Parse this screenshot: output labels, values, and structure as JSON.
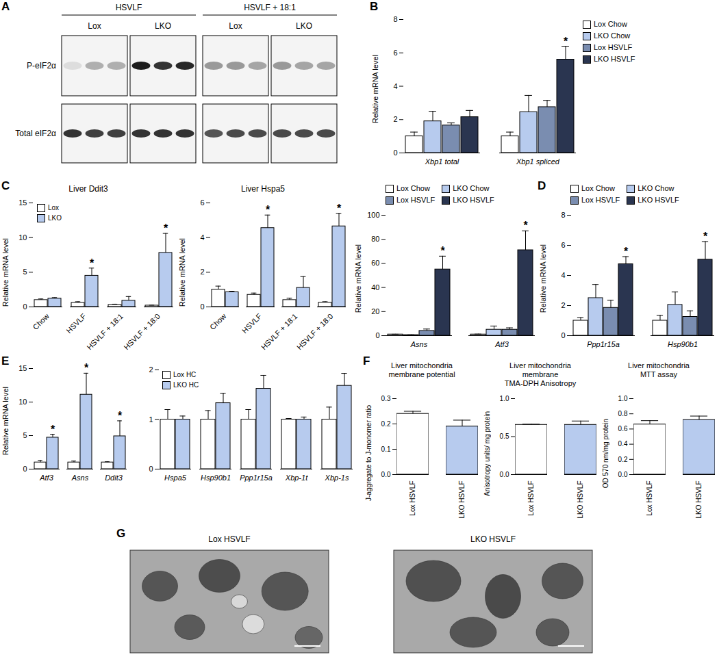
{
  "chart_data": [
    {
      "panel": "A",
      "type": "blot",
      "groups": [
        {
          "label": "HSVLF",
          "lanes": [
            {
              "label": "Lox",
              "count": 3
            },
            {
              "label": "LKO",
              "count": 3
            }
          ]
        },
        {
          "label": "HSVLF + 18:1",
          "lanes": [
            {
              "label": "Lox",
              "count": 3
            },
            {
              "label": "LKO",
              "count": 3
            }
          ]
        }
      ],
      "rows": [
        {
          "label": "P-eIF2α",
          "intensity": [
            0.1,
            0.3,
            0.3,
            0.95,
            0.85,
            0.9,
            0.4,
            0.4,
            0.35,
            0.4,
            0.35,
            0.35
          ]
        },
        {
          "label": "Total eIF2α",
          "intensity": [
            0.85,
            0.8,
            0.8,
            0.85,
            0.85,
            0.85,
            0.7,
            0.75,
            0.75,
            0.75,
            0.75,
            0.75
          ]
        }
      ]
    },
    {
      "panel": "B",
      "type": "bar",
      "ylabel": "Relative mRNA level",
      "categories": [
        "Xbp1 total",
        "Xbp1 spliced"
      ],
      "series": [
        {
          "name": "Lox Chow",
          "color": "#ffffff",
          "values": [
            1.0,
            1.0
          ],
          "errors": [
            0.25,
            0.25
          ]
        },
        {
          "name": "LKO Chow",
          "color": "#b7cbee",
          "values": [
            1.9,
            2.45
          ],
          "errors": [
            0.6,
            1.0
          ]
        },
        {
          "name": "Lox HSVLF",
          "color": "#7a8db0",
          "values": [
            1.65,
            2.75
          ],
          "errors": [
            0.15,
            0.4
          ]
        },
        {
          "name": "LKO HSVLF",
          "color": "#2a3550",
          "values": [
            2.15,
            5.6
          ],
          "errors": [
            0.4,
            0.8
          ]
        }
      ],
      "ylim": [
        0,
        8
      ],
      "yticks": [
        0,
        2,
        4,
        6,
        8
      ],
      "legend": "right",
      "annotations": [
        {
          "category": "Xbp1 spliced",
          "series": "LKO HSVLF",
          "text": "*"
        }
      ]
    },
    {
      "panel": "C",
      "type": "bar",
      "title": "Liver Ddit3",
      "ylabel": "Relative mRNA level",
      "categories": [
        "Chow",
        "HSVLF",
        "HSVLF + 18:1",
        "HSVLF + 18:0"
      ],
      "series": [
        {
          "name": "Lox",
          "color": "#ffffff",
          "values": [
            1.0,
            0.6,
            0.3,
            0.2
          ],
          "errors": [
            0.15,
            0.15,
            0.1,
            0.05
          ]
        },
        {
          "name": "LKO",
          "color": "#b7cbee",
          "values": [
            1.2,
            4.5,
            0.9,
            7.8
          ],
          "errors": [
            0.15,
            1.1,
            0.6,
            2.8
          ]
        }
      ],
      "ylim": [
        0,
        15
      ],
      "yticks": [
        0,
        5,
        10,
        15
      ],
      "legend": "top-left",
      "annotations": [
        {
          "category": "HSVLF",
          "series": "LKO",
          "text": "*"
        },
        {
          "category": "HSVLF + 18:0",
          "series": "LKO",
          "text": "*"
        }
      ]
    },
    {
      "type": "bar",
      "title": "Liver Hspa5",
      "ylabel": "Relative mRNA level",
      "categories": [
        "Chow",
        "HSVLF",
        "HSVLF + 18:1",
        "HSVLF + 18:0"
      ],
      "series": [
        {
          "name": "Lox",
          "color": "#ffffff",
          "values": [
            1.0,
            0.7,
            0.4,
            0.25
          ],
          "errors": [
            0.2,
            0.1,
            0.1,
            0.05
          ]
        },
        {
          "name": "LKO",
          "color": "#b7cbee",
          "values": [
            0.85,
            4.55,
            1.1,
            4.65
          ],
          "errors": [
            0.05,
            0.75,
            0.65,
            0.75
          ]
        }
      ],
      "ylim": [
        0,
        6
      ],
      "yticks": [
        0,
        2,
        4,
        6
      ],
      "annotations": [
        {
          "category": "HSVLF",
          "series": "LKO",
          "text": "*"
        },
        {
          "category": "HSVLF + 18:0",
          "series": "LKO",
          "text": "*"
        }
      ]
    },
    {
      "type": "bar",
      "ylabel": "Relative mRNA level",
      "categories": [
        "Asns",
        "Atf3"
      ],
      "series": [
        {
          "name": "Lox Chow",
          "color": "#ffffff",
          "values": [
            1.0,
            1.0
          ],
          "errors": [
            0.2,
            0.3
          ]
        },
        {
          "name": "LKO Chow",
          "color": "#b7cbee",
          "values": [
            0.5,
            5.0
          ],
          "errors": [
            0.2,
            3.0
          ]
        },
        {
          "name": "Lox HSVLF",
          "color": "#7a8db0",
          "values": [
            4.0,
            5.0
          ],
          "errors": [
            1.5,
            1.5
          ]
        },
        {
          "name": "LKO HSVLF",
          "color": "#2a3550",
          "values": [
            55,
            71
          ],
          "errors": [
            11,
            16
          ]
        }
      ],
      "ylim": [
        0,
        100
      ],
      "yticks": [
        0,
        20,
        40,
        60,
        80,
        100
      ],
      "legend": "top",
      "annotations": [
        {
          "category": "Asns",
          "series": "LKO HSVLF",
          "text": "*"
        },
        {
          "category": "Atf3",
          "series": "LKO HSVLF",
          "text": "*"
        }
      ]
    },
    {
      "panel": "D",
      "type": "bar",
      "ylabel": "Relative mRNA level",
      "categories": [
        "Ppp1r15a",
        "Hsp90b1"
      ],
      "series": [
        {
          "name": "Lox Chow",
          "color": "#ffffff",
          "values": [
            1.0,
            1.0
          ],
          "errors": [
            0.2,
            0.35
          ]
        },
        {
          "name": "LKO Chow",
          "color": "#b7cbee",
          "values": [
            2.5,
            2.05
          ],
          "errors": [
            0.9,
            0.85
          ]
        },
        {
          "name": "Lox HSVLF",
          "color": "#7a8db0",
          "values": [
            1.85,
            1.25
          ],
          "errors": [
            0.5,
            0.4
          ]
        },
        {
          "name": "LKO HSVLF",
          "color": "#2a3550",
          "values": [
            4.75,
            5.05
          ],
          "errors": [
            0.5,
            1.2
          ]
        }
      ],
      "ylim": [
        0,
        8
      ],
      "yticks": [
        0,
        2,
        4,
        6,
        8
      ],
      "legend": "top",
      "annotations": [
        {
          "category": "Ppp1r15a",
          "series": "LKO HSVLF",
          "text": "*"
        },
        {
          "category": "Hsp90b1",
          "series": "LKO HSVLF",
          "text": "*"
        }
      ]
    },
    {
      "panel": "E",
      "type": "bar",
      "ylabel": "Relative mRNA level",
      "categories": [
        "Atf3",
        "Asns",
        "Ddit3"
      ],
      "series": [
        {
          "name": "Lox HC",
          "color": "#ffffff",
          "values": [
            1.0,
            1.0,
            1.0
          ],
          "errors": [
            0.3,
            0.2,
            0.1
          ]
        },
        {
          "name": "LKO HC",
          "color": "#b7cbee",
          "values": [
            4.7,
            11.1,
            4.9
          ],
          "errors": [
            0.5,
            3.2,
            2.3
          ]
        }
      ],
      "ylim": [
        0,
        15
      ],
      "yticks": [
        0,
        5,
        10,
        15
      ],
      "annotations": [
        {
          "category": "Atf3",
          "series": "LKO HC",
          "text": "*"
        },
        {
          "category": "Asns",
          "series": "LKO HC",
          "text": "*"
        },
        {
          "category": "Ddit3",
          "series": "LKO HC",
          "text": "*"
        }
      ]
    },
    {
      "type": "bar",
      "categories": [
        "Hspa5",
        "Hsp90b1",
        "Ppp1r15a",
        "Xbp-1t",
        "Xbp-1s"
      ],
      "series": [
        {
          "name": "Lox HC",
          "color": "#ffffff",
          "values": [
            1.0,
            1.0,
            1.0,
            1.0,
            1.0
          ],
          "errors": [
            0.2,
            0.18,
            0.2,
            0.02,
            0.25
          ]
        },
        {
          "name": "LKO HC",
          "color": "#b7cbee",
          "values": [
            1.0,
            1.33,
            1.62,
            1.0,
            1.68
          ],
          "errors": [
            0.07,
            0.2,
            0.27,
            0.05,
            0.25
          ]
        }
      ],
      "ylim": [
        0,
        2
      ],
      "yticks": [
        0,
        1,
        2
      ],
      "legend": "top-left"
    },
    {
      "panel": "F",
      "type": "bar",
      "title": "Liver mitochondria\nmembrane potential",
      "ylabel": "J-aggregate to J-monomer ratio",
      "categories": [
        "Lox HSVLF",
        "LKO HSVLF"
      ],
      "series": [
        {
          "colors": [
            "#ffffff",
            "#b7cbee"
          ],
          "values": [
            0.24,
            0.19
          ],
          "errors": [
            0.01,
            0.025
          ]
        }
      ],
      "ylim": [
        0,
        0.3
      ],
      "yticks": [
        {
          "value": 0,
          "label": "0.0"
        },
        0.1,
        0.2,
        0.3
      ]
    },
    {
      "type": "bar",
      "title": "Liver mitochondria\nmembrane\nTMA-DPH Anisotropy",
      "ylabel": "Anisotropy units/ mg protein",
      "categories": [
        "Lox HSVLF",
        "LKO HSVLF"
      ],
      "series": [
        {
          "colors": [
            "#ffffff",
            "#b7cbee"
          ],
          "values": [
            0.655,
            0.655
          ],
          "errors": [
            0.008,
            0.05
          ]
        }
      ],
      "ylim": [
        0,
        1
      ],
      "yticks": [
        {
          "value": 0,
          "label": "0.0"
        },
        0.5,
        {
          "value": 1,
          "label": "1.0"
        }
      ]
    },
    {
      "type": "bar",
      "title": "Liver mitochondria\nMTT assay",
      "ylabel": "OD 570 nm/mg protein",
      "categories": [
        "Lox HSVLF",
        "LKO HSVLF"
      ],
      "series": [
        {
          "colors": [
            "#ffffff",
            "#b7cbee"
          ],
          "values": [
            0.66,
            0.72
          ],
          "errors": [
            0.05,
            0.05
          ]
        }
      ],
      "ylim": [
        0,
        1
      ],
      "yticks": [
        {
          "value": 0,
          "label": "0.0"
        },
        0.2,
        0.4,
        0.6,
        0.8,
        {
          "value": 1,
          "label": "1.0"
        }
      ]
    },
    {
      "panel": "G",
      "type": "micrograph",
      "images": [
        {
          "title": "Lox HSVLF"
        },
        {
          "title": "LKO HSVLF"
        }
      ]
    }
  ]
}
